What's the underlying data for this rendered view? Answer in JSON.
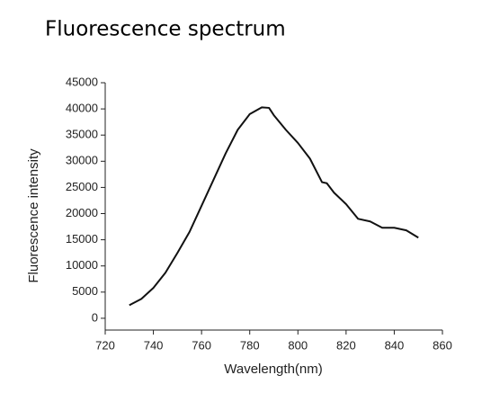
{
  "chart_data": {
    "type": "line",
    "title": "Fluorescence spectrum",
    "x_label": "Wavelength(nm)",
    "y_label": "Fluorescence intensity",
    "x": [
      730,
      735,
      740,
      745,
      750,
      755,
      760,
      765,
      770,
      775,
      780,
      785,
      788,
      790,
      795,
      800,
      805,
      810,
      812,
      815,
      820,
      825,
      830,
      835,
      840,
      845,
      850
    ],
    "series": [
      {
        "name": "Fluorescence",
        "color": "#111111",
        "values": [
          2500,
          3700,
          5800,
          8700,
          12500,
          16500,
          21500,
          26500,
          31500,
          36000,
          39000,
          40300,
          40200,
          38800,
          36000,
          33500,
          30500,
          26000,
          25800,
          24000,
          21800,
          19000,
          18500,
          17300,
          17300,
          16800,
          15400
        ]
      }
    ],
    "xlim": [
      720,
      860
    ],
    "xticks": [
      720,
      740,
      760,
      780,
      800,
      820,
      840,
      860
    ],
    "ylim": [
      -2250,
      45000
    ],
    "yticks": [
      0,
      5000,
      10000,
      15000,
      20000,
      25000,
      30000,
      35000,
      40000,
      45000
    ],
    "grid": false
  }
}
